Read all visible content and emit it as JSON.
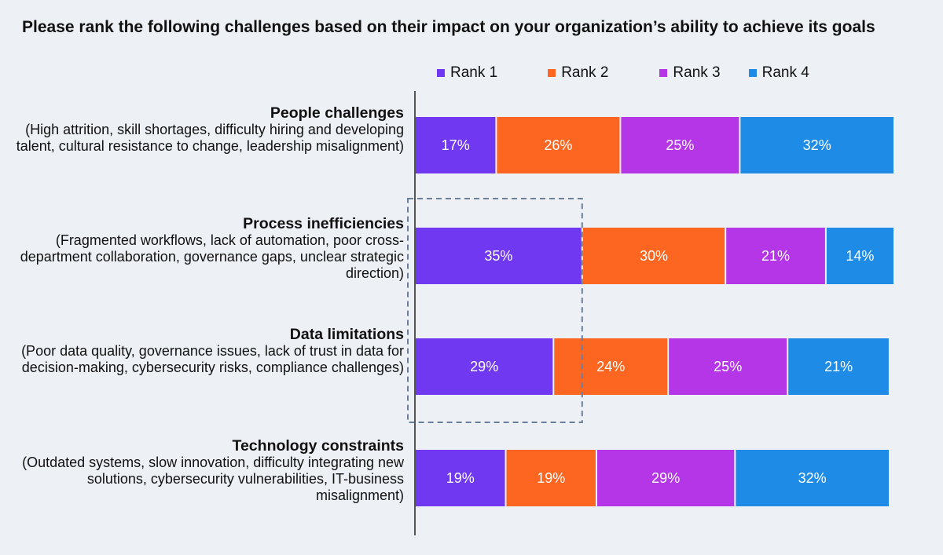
{
  "title": "Please rank the following challenges based on their impact on your organization’s ability to achieve its goals",
  "chart_data": {
    "type": "bar",
    "orientation": "horizontal",
    "stacked": true,
    "title": "Please rank the following challenges based on their impact on your organization’s ability to achieve its goals",
    "legend_position": "top",
    "grid": false,
    "xlim": [
      0,
      100
    ],
    "categories": [
      {
        "title": "People challenges",
        "description": "(High attrition, skill shortages, difficulty hiring and developing talent, cultural resistance to change, leadership misalignment)"
      },
      {
        "title": "Process inefficiencies",
        "description": "(Fragmented workflows, lack of automation, poor cross-department collaboration, governance gaps, unclear strategic direction)"
      },
      {
        "title": "Data limitations",
        "description": "(Poor data quality, governance issues, lack of trust in data for decision-making, cybersecurity risks, compliance challenges)"
      },
      {
        "title": "Technology constraints",
        "description": "(Outdated systems, slow innovation, difficulty integrating new solutions, cybersecurity vulnerabilities, IT-business misalignment)"
      }
    ],
    "series": [
      {
        "name": "Rank 1",
        "color": "#7038f0",
        "values": [
          17,
          35,
          29,
          19
        ],
        "labels": [
          "17%",
          "35%",
          "29%",
          "19%"
        ]
      },
      {
        "name": "Rank 2",
        "color": "#fd6620",
        "values": [
          26,
          30,
          24,
          19
        ],
        "labels": [
          "26%",
          "30%",
          "24%",
          "19%"
        ]
      },
      {
        "name": "Rank 3",
        "color": "#b536e6",
        "values": [
          25,
          21,
          25,
          29
        ],
        "labels": [
          "25%",
          "21%",
          "25%",
          "29%"
        ]
      },
      {
        "name": "Rank 4",
        "color": "#1e8ce6",
        "values": [
          32,
          14,
          21,
          32
        ],
        "labels": [
          "32%",
          "14%",
          "21%",
          "32%"
        ]
      }
    ],
    "highlight": {
      "style": "dashed-box",
      "categories": [
        "Process inefficiencies",
        "Data limitations"
      ],
      "series": "Rank 1",
      "color": "#6b7f9a"
    }
  }
}
